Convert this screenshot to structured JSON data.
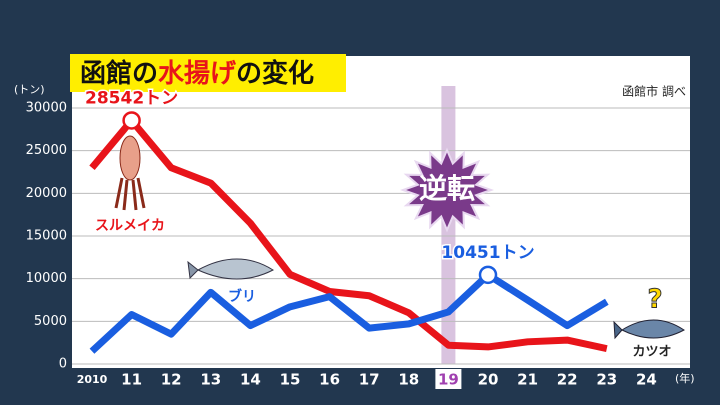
{
  "chart_data": {
    "type": "line",
    "title": [
      "函館の",
      "水揚げ",
      "の変化"
    ],
    "y_axis_label": "(トン)",
    "x_axis_label": "(年)",
    "source": "函館市 調べ",
    "annotation": "逆転",
    "highlight_index": 9,
    "categories": [
      "2010",
      "11",
      "12",
      "13",
      "14",
      "15",
      "16",
      "17",
      "18",
      "19",
      "20",
      "21",
      "22",
      "23",
      "24"
    ],
    "series": [
      {
        "name": "スルメイカ",
        "color": "#e8141a",
        "values": [
          23000,
          28542,
          23000,
          21200,
          16500,
          10500,
          8500,
          8000,
          6000,
          2200,
          2000,
          2600,
          2800,
          1800,
          null
        ],
        "value_labels": [
          null,
          "28542トン",
          null,
          null,
          null,
          null,
          null,
          null,
          null,
          null,
          null,
          null,
          null,
          null,
          null
        ]
      },
      {
        "name": "ブリ",
        "color": "#1a5ee0",
        "values": [
          1500,
          5800,
          3500,
          8400,
          4500,
          6700,
          7900,
          4200,
          4700,
          6100,
          10451,
          7500,
          4500,
          7300,
          null
        ],
        "value_labels": [
          null,
          null,
          null,
          null,
          null,
          null,
          null,
          null,
          null,
          null,
          "10451トン",
          null,
          null,
          null,
          null
        ]
      }
    ],
    "extra_label": "カツオ",
    "extra_mark": "?",
    "ylim": [
      0,
      30000
    ],
    "yticks": [
      0,
      5000,
      10000,
      15000,
      20000,
      25000,
      30000
    ],
    "grid": true
  }
}
